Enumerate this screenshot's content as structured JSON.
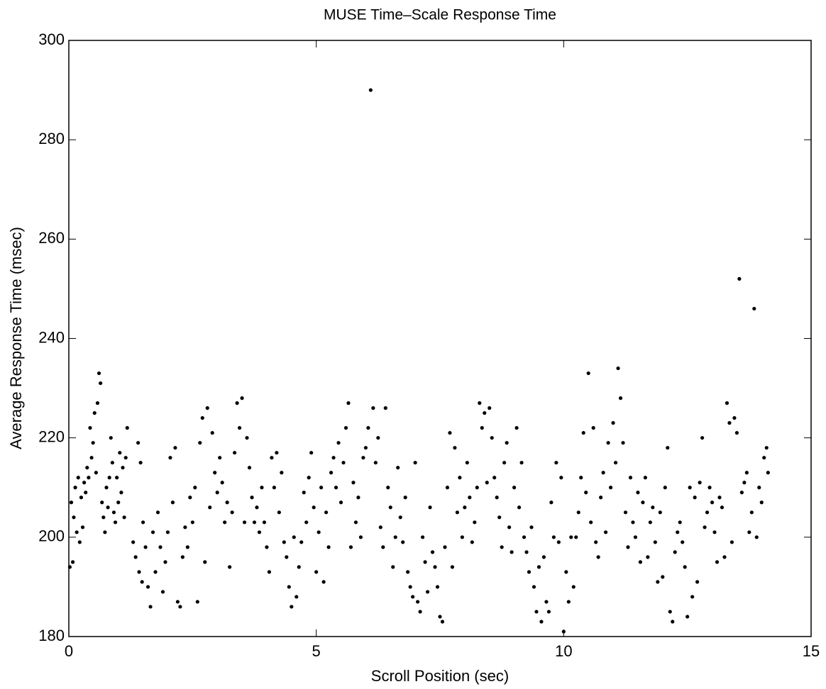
{
  "chart_data": {
    "type": "scatter",
    "title": "MUSE Time–Scale Response Time",
    "x_label": "Scroll Position (sec)",
    "y_label": "Average Response Time (msec)",
    "color": "#000000",
    "xlim": [
      0,
      15
    ],
    "xticks": [
      0,
      5,
      10,
      15
    ],
    "ylim": [
      180,
      300
    ],
    "yticks": [
      180,
      200,
      220,
      240,
      260,
      280,
      300
    ],
    "x": [
      0.02,
      0.05,
      0.08,
      0.1,
      0.13,
      0.16,
      0.19,
      0.22,
      0.25,
      0.28,
      0.31,
      0.34,
      0.37,
      0.4,
      0.43,
      0.46,
      0.49,
      0.52,
      0.55,
      0.58,
      0.61,
      0.64,
      0.67,
      0.7,
      0.73,
      0.76,
      0.79,
      0.82,
      0.85,
      0.88,
      0.91,
      0.94,
      0.97,
      1.0,
      1.03,
      1.06,
      1.09,
      1.12,
      1.15,
      1.18,
      1.3,
      1.35,
      1.4,
      1.42,
      1.45,
      1.48,
      1.5,
      1.55,
      1.6,
      1.65,
      1.7,
      1.75,
      1.8,
      1.85,
      1.9,
      1.95,
      2.0,
      2.05,
      2.1,
      2.15,
      2.2,
      2.25,
      2.3,
      2.35,
      2.4,
      2.45,
      2.5,
      2.55,
      2.6,
      2.65,
      2.7,
      2.75,
      2.8,
      2.85,
      2.9,
      2.95,
      3.0,
      3.05,
      3.1,
      3.15,
      3.2,
      3.25,
      3.3,
      3.35,
      3.4,
      3.45,
      3.5,
      3.55,
      3.6,
      3.65,
      3.7,
      3.75,
      3.8,
      3.85,
      3.9,
      3.95,
      4.0,
      4.05,
      4.1,
      4.15,
      4.2,
      4.25,
      4.3,
      4.35,
      4.4,
      4.45,
      4.5,
      4.55,
      4.6,
      4.65,
      4.7,
      4.75,
      4.8,
      4.85,
      4.9,
      4.95,
      5.0,
      5.05,
      5.1,
      5.15,
      5.2,
      5.25,
      5.3,
      5.35,
      5.4,
      5.45,
      5.5,
      5.55,
      5.6,
      5.65,
      5.7,
      5.75,
      5.8,
      5.85,
      5.9,
      5.95,
      6.0,
      6.05,
      6.1,
      6.15,
      6.2,
      6.25,
      6.3,
      6.35,
      6.4,
      6.45,
      6.5,
      6.55,
      6.6,
      6.65,
      6.7,
      6.75,
      6.8,
      6.85,
      6.9,
      6.95,
      7.0,
      7.05,
      7.1,
      7.15,
      7.2,
      7.25,
      7.3,
      7.35,
      7.4,
      7.45,
      7.5,
      7.55,
      7.6,
      7.65,
      7.7,
      7.75,
      7.8,
      7.85,
      7.9,
      7.95,
      8.0,
      8.05,
      8.1,
      8.15,
      8.2,
      8.25,
      8.3,
      8.35,
      8.4,
      8.45,
      8.5,
      8.55,
      8.6,
      8.65,
      8.7,
      8.75,
      8.8,
      8.85,
      8.9,
      8.95,
      9.0,
      9.05,
      9.1,
      9.15,
      9.2,
      9.25,
      9.3,
      9.35,
      9.4,
      9.45,
      9.5,
      9.55,
      9.6,
      9.65,
      9.7,
      9.75,
      9.8,
      9.85,
      9.9,
      9.95,
      10.0,
      10.05,
      10.1,
      10.15,
      10.2,
      10.25,
      10.3,
      10.35,
      10.4,
      10.45,
      10.5,
      10.55,
      10.6,
      10.65,
      10.7,
      10.75,
      10.8,
      10.85,
      10.9,
      10.95,
      11.0,
      11.05,
      11.1,
      11.15,
      11.2,
      11.25,
      11.3,
      11.35,
      11.4,
      11.45,
      11.5,
      11.55,
      11.6,
      11.65,
      11.7,
      11.75,
      11.8,
      11.85,
      11.9,
      11.95,
      12.0,
      12.05,
      12.1,
      12.15,
      12.2,
      12.25,
      12.3,
      12.35,
      12.4,
      12.45,
      12.5,
      12.55,
      12.6,
      12.65,
      12.7,
      12.75,
      12.8,
      12.85,
      12.9,
      12.95,
      13.0,
      13.05,
      13.1,
      13.15,
      13.2,
      13.25,
      13.3,
      13.35,
      13.4,
      13.45,
      13.5,
      13.55,
      13.6,
      13.65,
      13.7,
      13.75,
      13.8,
      13.85,
      13.9,
      13.95,
      14.0,
      14.05,
      14.1,
      14.13
    ],
    "values": [
      194,
      207,
      195,
      204,
      210,
      201,
      212,
      199,
      208,
      202,
      211,
      209,
      214,
      212,
      222,
      216,
      219,
      225,
      213,
      227,
      233,
      231,
      207,
      204,
      201,
      210,
      206,
      212,
      220,
      215,
      205,
      203,
      212,
      207,
      217,
      209,
      214,
      204,
      216,
      222,
      199,
      196,
      219,
      193,
      215,
      191,
      203,
      198,
      190,
      186,
      201,
      193,
      205,
      198,
      189,
      195,
      201,
      216,
      207,
      218,
      187,
      186,
      196,
      202,
      198,
      208,
      203,
      210,
      187,
      219,
      224,
      195,
      226,
      206,
      221,
      213,
      209,
      216,
      211,
      203,
      207,
      194,
      205,
      217,
      227,
      222,
      228,
      203,
      220,
      214,
      208,
      203,
      206,
      201,
      210,
      203,
      198,
      193,
      216,
      210,
      217,
      205,
      213,
      199,
      196,
      190,
      186,
      200,
      188,
      194,
      199,
      209,
      203,
      212,
      217,
      206,
      193,
      201,
      210,
      191,
      205,
      198,
      213,
      216,
      210,
      219,
      207,
      215,
      222,
      227,
      198,
      211,
      203,
      208,
      200,
      216,
      218,
      222,
      290,
      226,
      215,
      220,
      202,
      198,
      226,
      210,
      206,
      194,
      200,
      214,
      204,
      199,
      208,
      193,
      190,
      188,
      215,
      187,
      185,
      200,
      195,
      189,
      206,
      197,
      194,
      190,
      184,
      183,
      198,
      210,
      221,
      194,
      218,
      205,
      212,
      200,
      206,
      215,
      208,
      199,
      203,
      210,
      227,
      222,
      225,
      211,
      226,
      220,
      212,
      208,
      204,
      198,
      215,
      219,
      202,
      197,
      210,
      222,
      206,
      215,
      200,
      197,
      193,
      202,
      190,
      185,
      194,
      183,
      196,
      187,
      185,
      207,
      200,
      215,
      199,
      212,
      181,
      193,
      187,
      200,
      190,
      200,
      205,
      212,
      221,
      209,
      233,
      203,
      222,
      199,
      196,
      208,
      213,
      201,
      219,
      210,
      223,
      215,
      234,
      228,
      219,
      205,
      198,
      212,
      203,
      200,
      209,
      195,
      207,
      212,
      196,
      203,
      206,
      199,
      191,
      205,
      192,
      210,
      218,
      185,
      183,
      197,
      201,
      203,
      199,
      194,
      184,
      210,
      188,
      208,
      191,
      211,
      220,
      202,
      205,
      210,
      207,
      201,
      195,
      208,
      206,
      196,
      227,
      223,
      199,
      224,
      221,
      252,
      209,
      211,
      213,
      201,
      205,
      246,
      200,
      210,
      207,
      216,
      218,
      213
    ]
  }
}
